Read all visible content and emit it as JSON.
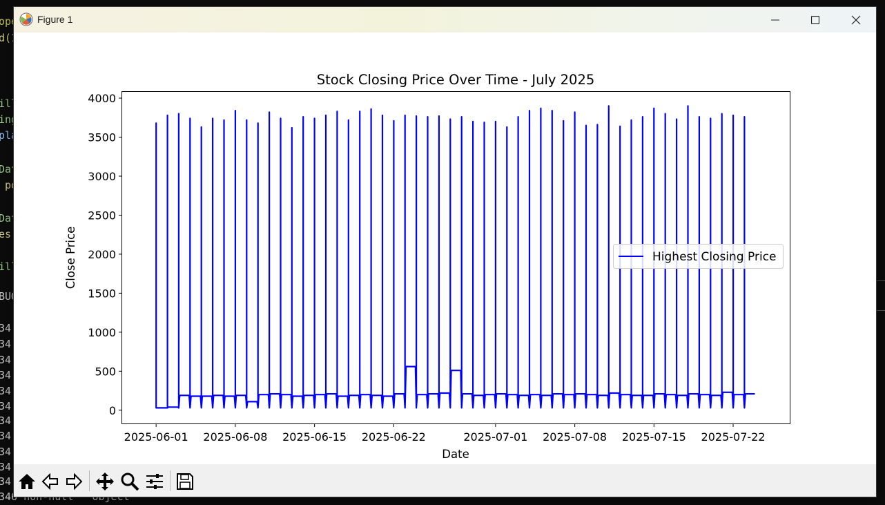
{
  "window": {
    "title": "Figure 1"
  },
  "background_terminal": {
    "lines": [
      {
        "text": "ope",
        "color": "#c8c850",
        "top": 22
      },
      {
        "text": "d(1",
        "color": "#d8d090",
        "top": 46
      },
      {
        "text": "ill",
        "color": "#9bd38a",
        "top": 141
      },
      {
        "text": "ing",
        "color": "#9bd38a",
        "top": 164
      },
      {
        "text": "pla",
        "color": "#8fc6ff",
        "top": 187
      },
      {
        "text": "Dat",
        "color": "#9bd38a",
        "top": 236
      },
      {
        "text": " po",
        "color": "#d8d090",
        "top": 259
      },
      {
        "text": "Dat",
        "color": "#9bd38a",
        "top": 307
      },
      {
        "text": "es(",
        "color": "#d8d090",
        "top": 330
      },
      {
        "text": "ill",
        "color": "#9bd38a",
        "top": 377
      },
      {
        "text": "BUG",
        "color": "#d0d0d0",
        "top": 420
      },
      {
        "text": "34",
        "color": "#d0d0d0",
        "top": 466
      },
      {
        "text": "34",
        "color": "#d0d0d0",
        "top": 489
      },
      {
        "text": "34",
        "color": "#d0d0d0",
        "top": 512
      },
      {
        "text": "34",
        "color": "#d0d0d0",
        "top": 534
      },
      {
        "text": "34",
        "color": "#d0d0d0",
        "top": 557
      },
      {
        "text": "34",
        "color": "#d0d0d0",
        "top": 579
      },
      {
        "text": "34",
        "color": "#d0d0d0",
        "top": 600
      },
      {
        "text": "34",
        "color": "#d0d0d0",
        "top": 622
      },
      {
        "text": "34",
        "color": "#d0d0d0",
        "top": 645
      },
      {
        "text": "34",
        "color": "#d0d0d0",
        "top": 667
      },
      {
        "text": "34",
        "color": "#d0d0d0",
        "top": 688
      },
      {
        "text": "346 non-null   object",
        "color": "#d0d0d0",
        "top": 710
      }
    ]
  },
  "toolbar": {
    "buttons": [
      {
        "name": "home-icon"
      },
      {
        "name": "back-icon"
      },
      {
        "name": "forward-icon"
      },
      {
        "name": "pan-icon"
      },
      {
        "name": "zoom-icon"
      },
      {
        "name": "configure-subplots-icon"
      },
      {
        "name": "save-icon"
      }
    ]
  },
  "chart_data": {
    "type": "line",
    "title": "Stock Closing Price Over Time - July 2025",
    "xlabel": "Date",
    "ylabel": "Close Price",
    "ylim": [
      -170,
      4080
    ],
    "xlim": [
      "2025-05-29",
      "2025-07-27"
    ],
    "yticks": [
      0,
      500,
      1000,
      1500,
      2000,
      2500,
      3000,
      3500,
      4000
    ],
    "xticks": [
      "2025-06-01",
      "2025-06-08",
      "2025-06-15",
      "2025-06-22",
      "2025-07-01",
      "2025-07-08",
      "2025-07-15",
      "2025-07-22"
    ],
    "legend_position": "center-right",
    "grid": false,
    "color": "#0000ff",
    "series": [
      {
        "name": "Highest Closing Price",
        "days": [
          "2025-06-01",
          "2025-06-02",
          "2025-06-03",
          "2025-06-04",
          "2025-06-05",
          "2025-06-06",
          "2025-06-07",
          "2025-06-08",
          "2025-06-09",
          "2025-06-10",
          "2025-06-11",
          "2025-06-12",
          "2025-06-13",
          "2025-06-14",
          "2025-06-15",
          "2025-06-16",
          "2025-06-17",
          "2025-06-18",
          "2025-06-19",
          "2025-06-20",
          "2025-06-21",
          "2025-06-22",
          "2025-06-23",
          "2025-06-24",
          "2025-06-25",
          "2025-06-26",
          "2025-06-27",
          "2025-06-28",
          "2025-06-29",
          "2025-06-30",
          "2025-07-01",
          "2025-07-02",
          "2025-07-03",
          "2025-07-04",
          "2025-07-05",
          "2025-07-06",
          "2025-07-07",
          "2025-07-08",
          "2025-07-09",
          "2025-07-10",
          "2025-07-11",
          "2025-07-12",
          "2025-07-13",
          "2025-07-14",
          "2025-07-15",
          "2025-07-16",
          "2025-07-17",
          "2025-07-18",
          "2025-07-19",
          "2025-07-20",
          "2025-07-21",
          "2025-07-22",
          "2025-07-23"
        ],
        "peak": [
          3680,
          3780,
          3800,
          3740,
          3630,
          3740,
          3720,
          3840,
          3720,
          3680,
          3820,
          3740,
          3620,
          3760,
          3740,
          3780,
          3830,
          3720,
          3830,
          3860,
          3780,
          3710,
          3780,
          3770,
          3760,
          3770,
          3730,
          3760,
          3700,
          3690,
          3700,
          3630,
          3760,
          3840,
          3870,
          3840,
          3710,
          3820,
          3650,
          3660,
          3900,
          3640,
          3720,
          3760,
          3870,
          3800,
          3730,
          3900,
          3760,
          3740,
          3800,
          3780,
          3760
        ],
        "low": [
          30,
          40,
          190,
          180,
          180,
          190,
          180,
          190,
          110,
          200,
          210,
          200,
          180,
          190,
          200,
          210,
          180,
          190,
          200,
          190,
          180,
          210,
          560,
          200,
          210,
          220,
          510,
          210,
          190,
          200,
          210,
          200,
          190,
          200,
          190,
          210,
          200,
          210,
          200,
          190,
          220,
          200,
          190,
          190,
          210,
          200,
          190,
          210,
          200,
          190,
          230,
          200,
          210
        ]
      }
    ]
  }
}
